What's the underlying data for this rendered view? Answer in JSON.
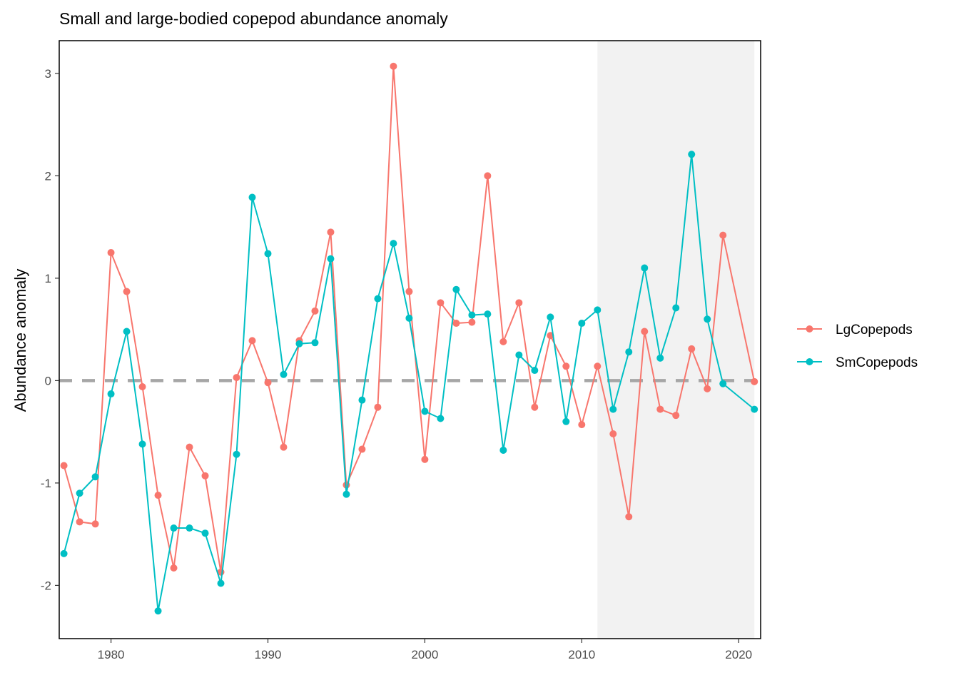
{
  "chart_data": {
    "type": "line",
    "title": "Small and large-bodied copepod abundance anomaly",
    "xlabel": "",
    "ylabel": "Abundance anomaly",
    "xlim": [
      1976.7,
      2021.4
    ],
    "ylim": [
      -2.52,
      3.32
    ],
    "x_ticks": [
      "1980",
      "1990",
      "2000",
      "2010",
      "2020"
    ],
    "y_ticks": [
      "-2",
      "-1",
      "0",
      "1",
      "2",
      "3"
    ],
    "reference_line": {
      "y": 0,
      "style": "dashed",
      "color": "#a6a6a6"
    },
    "shaded_region": {
      "x": [
        2011,
        2021
      ],
      "color": "#f2f2f2"
    },
    "legend_position": "right",
    "grid": false,
    "series": [
      {
        "name": "LgCopepods",
        "color": "#F8766D",
        "points": [
          [
            1977,
            -0.83
          ],
          [
            1978,
            -1.38
          ],
          [
            1979,
            -1.4
          ],
          [
            1980,
            1.25
          ],
          [
            1981,
            0.87
          ],
          [
            1982,
            -0.06
          ],
          [
            1983,
            -1.12
          ],
          [
            1984,
            -1.83
          ],
          [
            1985,
            -0.65
          ],
          [
            1986,
            -0.93
          ],
          [
            1987,
            -1.87
          ],
          [
            1988,
            0.03
          ],
          [
            1989,
            0.39
          ],
          [
            1990,
            -0.02
          ],
          [
            1991,
            -0.65
          ],
          [
            1992,
            0.39
          ],
          [
            1993,
            0.68
          ],
          [
            1994,
            1.45
          ],
          [
            1995,
            -1.02
          ],
          [
            1996,
            -0.67
          ],
          [
            1997,
            -0.26
          ],
          [
            1998,
            3.07
          ],
          [
            1999,
            0.87
          ],
          [
            2000,
            -0.77
          ],
          [
            2001,
            0.76
          ],
          [
            2002,
            0.56
          ],
          [
            2003,
            0.57
          ],
          [
            2004,
            2.0
          ],
          [
            2005,
            0.38
          ],
          [
            2006,
            0.76
          ],
          [
            2007,
            -0.26
          ],
          [
            2008,
            0.44
          ],
          [
            2009,
            0.14
          ],
          [
            2010,
            -0.43
          ],
          [
            2011,
            0.14
          ],
          [
            2012,
            -0.52
          ],
          [
            2013,
            -1.33
          ],
          [
            2014,
            0.48
          ],
          [
            2015,
            -0.28
          ],
          [
            2016,
            -0.34
          ],
          [
            2017,
            0.31
          ],
          [
            2018,
            -0.08
          ],
          [
            2019,
            1.42
          ],
          [
            2021,
            -0.01
          ]
        ]
      },
      {
        "name": "SmCopepods",
        "color": "#00BFC4",
        "points": [
          [
            1977,
            -1.69
          ],
          [
            1978,
            -1.1
          ],
          [
            1979,
            -0.94
          ],
          [
            1980,
            -0.13
          ],
          [
            1981,
            0.48
          ],
          [
            1982,
            -0.62
          ],
          [
            1983,
            -2.25
          ],
          [
            1984,
            -1.44
          ],
          [
            1985,
            -1.44
          ],
          [
            1986,
            -1.49
          ],
          [
            1987,
            -1.98
          ],
          [
            1988,
            -0.72
          ],
          [
            1989,
            1.79
          ],
          [
            1990,
            1.24
          ],
          [
            1991,
            0.06
          ],
          [
            1992,
            0.36
          ],
          [
            1993,
            0.37
          ],
          [
            1994,
            1.19
          ],
          [
            1995,
            -1.11
          ],
          [
            1996,
            -0.19
          ],
          [
            1997,
            0.8
          ],
          [
            1998,
            1.34
          ],
          [
            1999,
            0.61
          ],
          [
            2000,
            -0.3
          ],
          [
            2001,
            -0.37
          ],
          [
            2002,
            0.89
          ],
          [
            2003,
            0.64
          ],
          [
            2004,
            0.65
          ],
          [
            2005,
            -0.68
          ],
          [
            2006,
            0.25
          ],
          [
            2007,
            0.1
          ],
          [
            2008,
            0.62
          ],
          [
            2009,
            -0.4
          ],
          [
            2010,
            0.56
          ],
          [
            2011,
            0.69
          ],
          [
            2012,
            -0.28
          ],
          [
            2013,
            0.28
          ],
          [
            2014,
            1.1
          ],
          [
            2015,
            0.22
          ],
          [
            2016,
            0.71
          ],
          [
            2017,
            2.21
          ],
          [
            2018,
            0.6
          ],
          [
            2019,
            -0.03
          ],
          [
            2021,
            -0.28
          ]
        ]
      }
    ]
  }
}
